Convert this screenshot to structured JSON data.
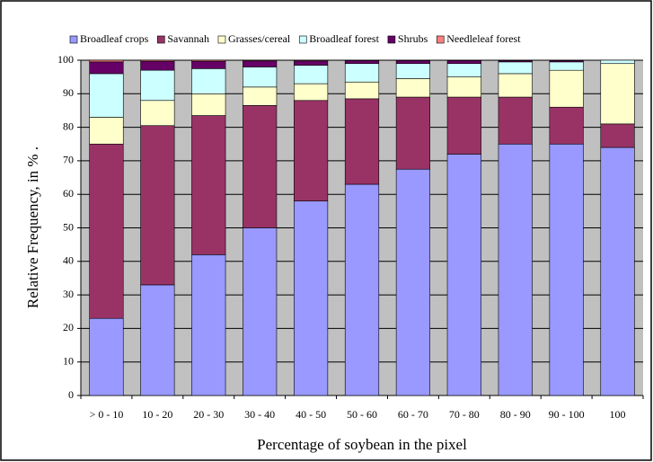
{
  "chart_data": {
    "type": "stacked_bar",
    "x_label": "Percentage of soybean in the pixel",
    "y_label": "Relative Frequency, in % .",
    "categories": [
      "> 0 - 10",
      "10 - 20",
      "20 - 30",
      "30 - 40",
      "40 - 50",
      "50 - 60",
      "60 - 70",
      "70 - 80",
      "80 - 90",
      "90 - 100",
      "100"
    ],
    "series": [
      {
        "name": "Broadleaf crops",
        "color": "#9999ff",
        "values": [
          23,
          33,
          42,
          50,
          58,
          63,
          67.5,
          72,
          75,
          75,
          74
        ]
      },
      {
        "name": "Savannah",
        "color": "#993366",
        "values": [
          52,
          47.5,
          41.5,
          36.5,
          30,
          25.5,
          21.5,
          17,
          14,
          11,
          7
        ]
      },
      {
        "name": "Grasses/cereal",
        "color": "#ffffcc",
        "values": [
          8,
          7.5,
          6.5,
          5.5,
          5,
          5,
          5.5,
          6,
          7,
          11,
          18
        ]
      },
      {
        "name": "Broadleaf forest",
        "color": "#ccffff",
        "values": [
          13,
          9,
          7.5,
          6,
          5.5,
          5.5,
          4.5,
          4,
          3.5,
          2.5,
          1
        ]
      },
      {
        "name": "Shrubs",
        "color": "#660066",
        "values": [
          3.5,
          2.7,
          2.2,
          1.8,
          1.3,
          0.9,
          0.9,
          0.9,
          0.4,
          0.4,
          0
        ]
      },
      {
        "name": "Needleleaf forest",
        "color": "#ff8080",
        "values": [
          0.5,
          0.3,
          0.3,
          0.2,
          0.2,
          0.1,
          0.1,
          0.1,
          0.1,
          0.1,
          0
        ]
      }
    ],
    "ylim": [
      0,
      100
    ],
    "yticks": [
      0,
      10,
      20,
      30,
      40,
      50,
      60,
      70,
      80,
      90,
      100
    ],
    "grid": true,
    "legend_position": "top",
    "plot_background": "#c0c0c0"
  }
}
